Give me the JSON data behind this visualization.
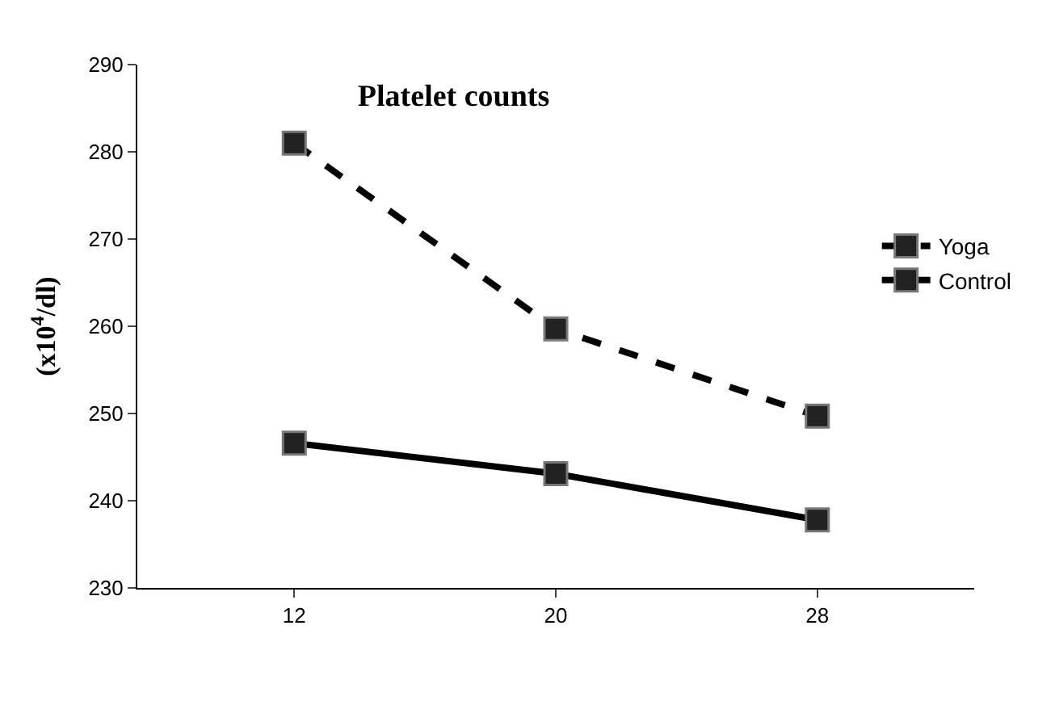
{
  "chart_data": {
    "type": "line",
    "title": "Platelet counts",
    "ylabel": "(x10$^{4}$/dl)",
    "categories": [
      "12",
      "20",
      "28"
    ],
    "series": [
      {
        "name": "Yoga",
        "color": "#000000",
        "values": [
          281,
          259.7,
          249.7
        ],
        "line_style": "dashed"
      },
      {
        "name": "Control",
        "color": "#000000",
        "values": [
          246.6,
          243.1,
          237.8
        ],
        "line_style": "solid"
      }
    ],
    "ylim": [
      230,
      290
    ],
    "yticks": [
      230,
      240,
      250,
      260,
      270,
      280,
      290
    ],
    "legend": "right",
    "marker": "square"
  }
}
